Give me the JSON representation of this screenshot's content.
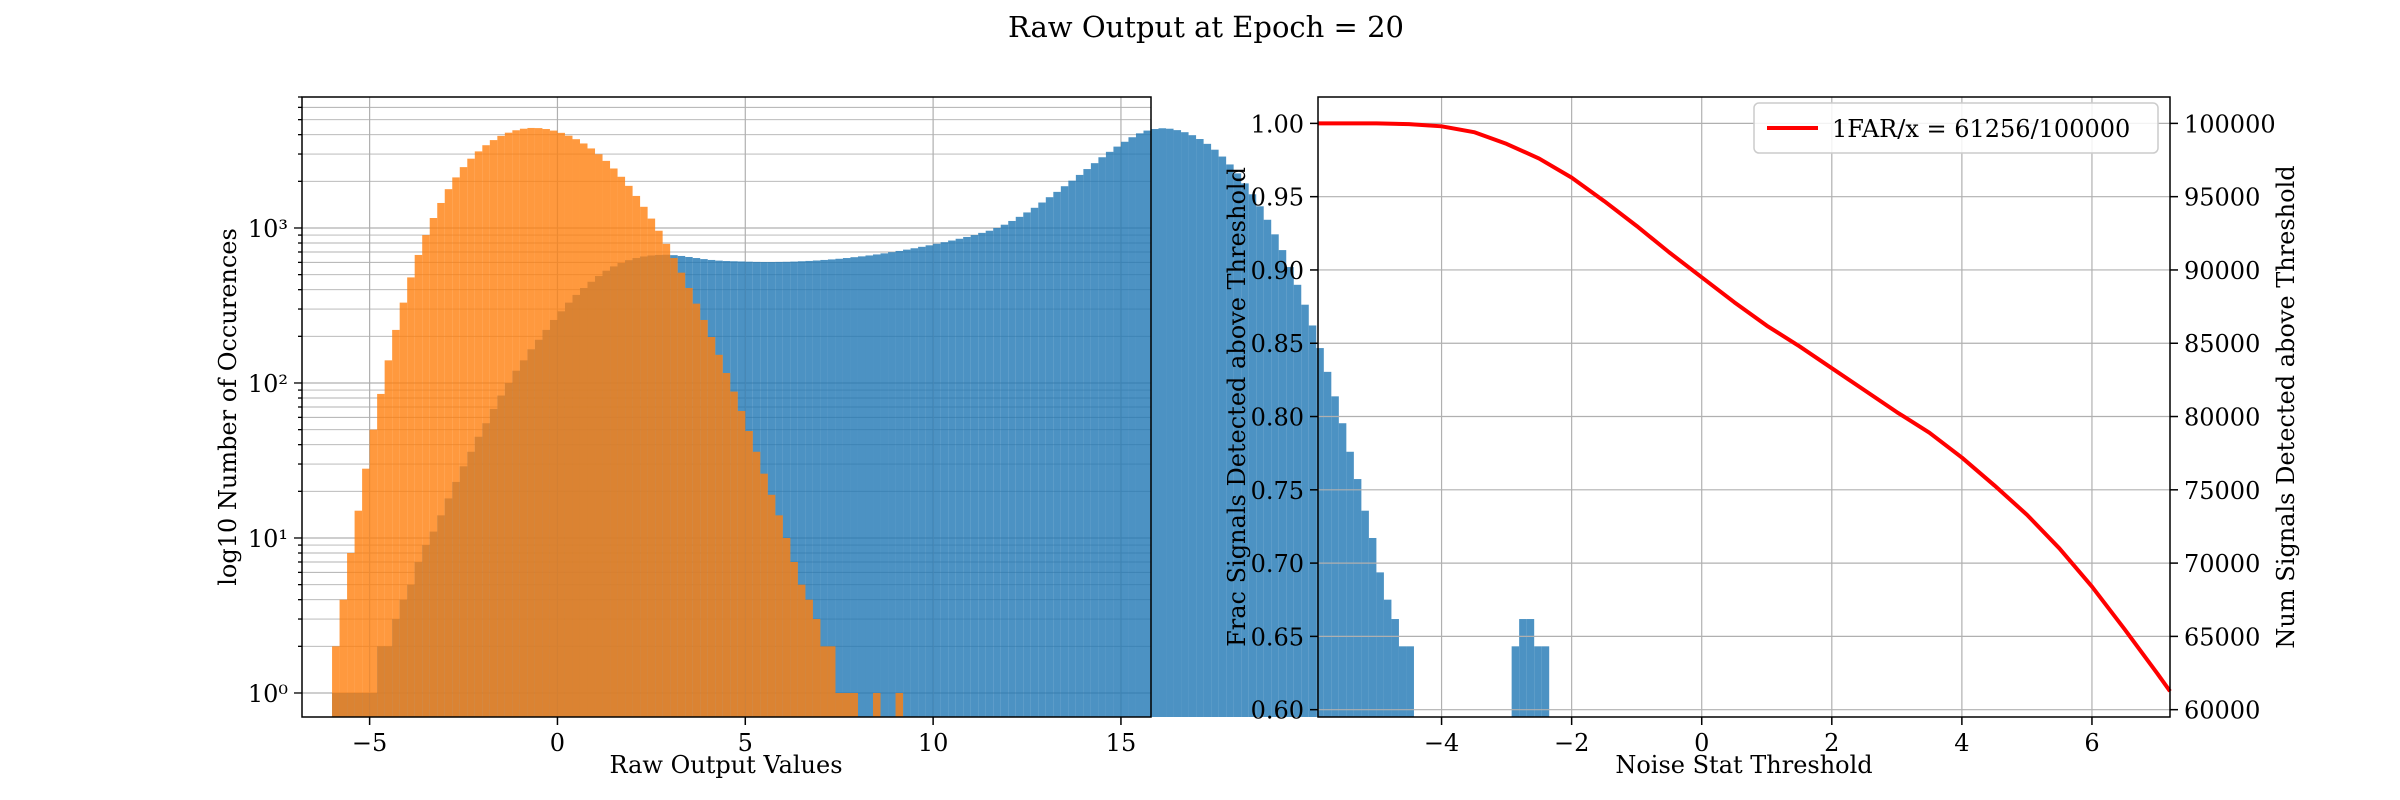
{
  "figure": {
    "title": "Raw Output at Epoch = 20"
  },
  "chart_data": [
    {
      "type": "histogram",
      "xlabel": "Raw Output Values",
      "ylabel": "log10 Number of Occurences",
      "y_scale": "log",
      "xlim": [
        -6.8,
        15.8
      ],
      "ylim": [
        0.7,
        7000
      ],
      "xticks": [
        -5,
        0,
        5,
        10,
        15
      ],
      "yticks": [
        1,
        10,
        100,
        1000
      ],
      "ytick_labels": [
        "10⁰",
        "10¹",
        "10²",
        "10³"
      ],
      "grid": true,
      "bin_width": 0.2,
      "series": [
        {
          "color": "#1f77b4",
          "alpha": 0.8,
          "bin_start": -6.0,
          "counts": [
            1,
            1,
            1,
            1,
            1,
            1,
            2,
            2,
            3,
            4,
            5,
            7,
            9,
            11,
            14,
            18,
            23,
            29,
            36,
            45,
            55,
            68,
            83,
            100,
            120,
            140,
            165,
            190,
            220,
            255,
            290,
            330,
            370,
            410,
            450,
            490,
            530,
            565,
            595,
            620,
            640,
            655,
            665,
            670,
            672,
            668,
            660,
            650,
            640,
            630,
            622,
            616,
            612,
            610,
            608,
            606,
            604,
            603,
            603,
            604,
            605,
            607,
            610,
            613,
            617,
            622,
            627,
            633,
            640,
            648,
            656,
            665,
            675,
            686,
            698,
            711,
            725,
            740,
            756,
            773,
            791,
            810,
            830,
            852,
            875,
            900,
            930,
            960,
            1000,
            1050,
            1110,
            1180,
            1260,
            1350,
            1460,
            1580,
            1710,
            1860,
            2020,
            2200,
            2400,
            2620,
            2860,
            3100,
            3350,
            3600,
            3850,
            4080,
            4250,
            4350,
            4400,
            4370,
            4280,
            4150,
            3970,
            3750,
            3490,
            3200,
            2890,
            2570,
            2250,
            1940,
            1650,
            1380,
            1130,
            910,
            720,
            560,
            430,
            320,
            235,
            168,
            118,
            82,
            55,
            36,
            24,
            15,
            10,
            6,
            4,
            3,
            2,
            2,
            0,
            0,
            0,
            0,
            0,
            0,
            0,
            0,
            0,
            0,
            0,
            0,
            0,
            2,
            3,
            3,
            2,
            2
          ]
        },
        {
          "color": "#ff7f0e",
          "alpha": 0.8,
          "bin_start": -6.0,
          "counts": [
            2,
            4,
            8,
            15,
            28,
            50,
            85,
            140,
            220,
            330,
            480,
            670,
            900,
            1160,
            1450,
            1780,
            2120,
            2470,
            2800,
            3120,
            3420,
            3690,
            3930,
            4120,
            4270,
            4370,
            4420,
            4410,
            4350,
            4250,
            4110,
            3940,
            3740,
            3510,
            3260,
            2990,
            2710,
            2420,
            2140,
            1870,
            1610,
            1370,
            1150,
            960,
            790,
            640,
            515,
            410,
            325,
            255,
            198,
            152,
            116,
            88,
            66,
            49,
            36,
            26,
            19,
            14,
            10,
            7,
            5,
            4,
            3,
            2,
            2,
            1,
            1,
            1,
            0,
            0,
            1,
            0,
            0,
            1,
            0,
            0,
            0,
            0,
            0,
            0,
            0,
            0,
            0,
            0,
            0,
            0,
            0,
            0,
            0,
            0,
            0,
            0,
            0,
            0,
            0,
            0,
            0,
            0,
            0,
            0,
            0,
            0,
            0,
            0,
            0,
            0,
            0,
            0,
            0,
            0,
            0,
            0,
            0,
            0,
            0,
            0,
            0,
            0,
            0,
            0,
            0,
            0,
            0,
            0,
            0,
            0,
            0,
            0,
            0,
            0,
            0,
            0,
            0,
            0,
            0,
            0,
            0,
            0,
            0,
            0,
            0,
            0,
            0,
            0,
            0,
            0,
            0,
            0,
            0,
            0,
            0,
            0,
            0,
            0,
            0,
            0,
            0,
            0,
            0,
            0
          ]
        }
      ]
    },
    {
      "type": "line",
      "xlabel": "Noise Stat Threshold",
      "ylabel": "Frac Signals Detected above Threshold",
      "ylabel_right": "Num Signals Detected above Threshold",
      "xlim": [
        -5.9,
        7.2
      ],
      "ylim": [
        0.595,
        1.018
      ],
      "xticks": [
        -4,
        -2,
        0,
        2,
        4,
        6
      ],
      "xtick_labels": [
        "−4",
        "−2",
        "0",
        "2",
        "4",
        "6"
      ],
      "yticks": [
        0.6,
        0.65,
        0.7,
        0.75,
        0.8,
        0.85,
        0.9,
        0.95,
        1.0
      ],
      "ytick_labels": [
        "0.60",
        "0.65",
        "0.70",
        "0.75",
        "0.80",
        "0.85",
        "0.90",
        "0.95",
        "1.00"
      ],
      "yticks_right": [
        60000,
        65000,
        70000,
        75000,
        80000,
        85000,
        90000,
        95000,
        100000
      ],
      "ytick_labels_right": [
        "60000",
        "65000",
        "70000",
        "75000",
        "80000",
        "85000",
        "90000",
        "95000",
        "100000"
      ],
      "grid": true,
      "legend_placement": "top-right",
      "series": [
        {
          "name": "1FAR/x = 61256/100000",
          "color": "#ff0000",
          "x": [
            -5.9,
            -5.0,
            -4.5,
            -4.0,
            -3.5,
            -3.0,
            -2.5,
            -2.0,
            -1.5,
            -1.0,
            -0.5,
            0.0,
            0.5,
            1.0,
            1.5,
            2.0,
            2.5,
            3.0,
            3.5,
            4.0,
            4.5,
            5.0,
            5.5,
            6.0,
            6.5,
            7.0,
            7.2
          ],
          "y": [
            1.0,
            1.0,
            0.9995,
            0.998,
            0.994,
            0.986,
            0.976,
            0.963,
            0.947,
            0.93,
            0.912,
            0.895,
            0.878,
            0.862,
            0.848,
            0.833,
            0.818,
            0.803,
            0.789,
            0.772,
            0.753,
            0.733,
            0.71,
            0.684,
            0.655,
            0.625,
            0.61256
          ]
        }
      ]
    }
  ]
}
